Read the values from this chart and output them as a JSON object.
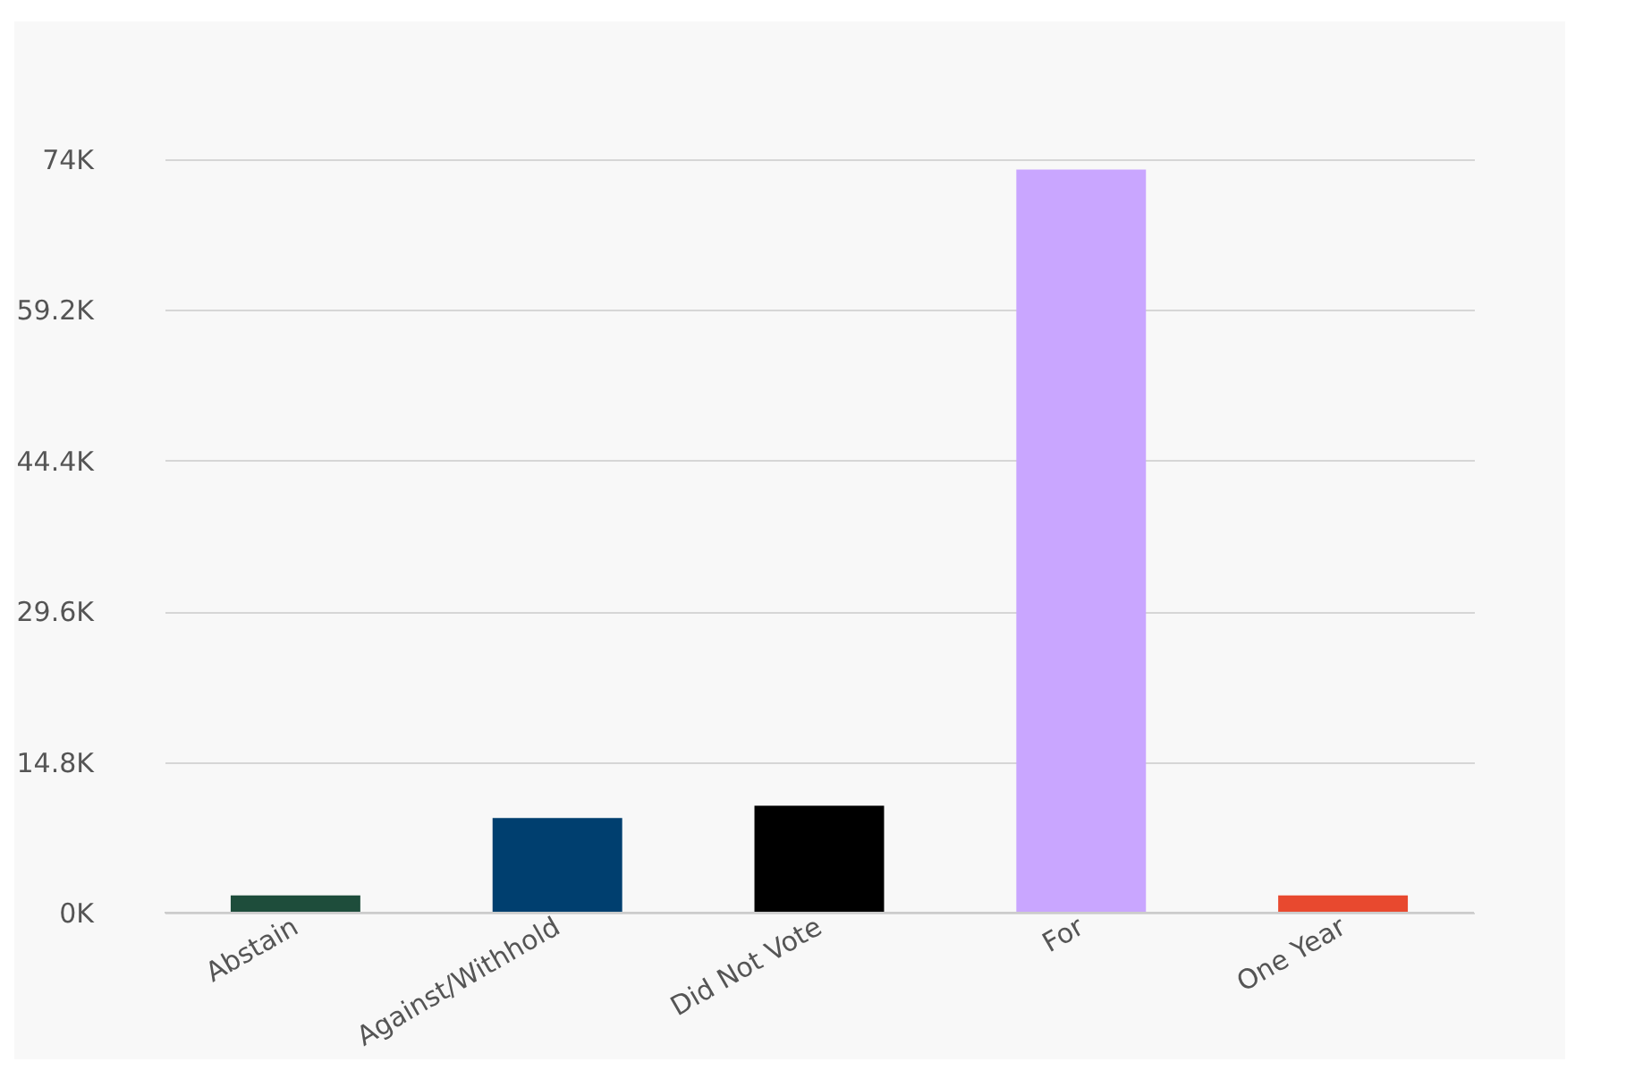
{
  "chart_data": {
    "type": "bar",
    "categories": [
      "Abstain",
      "Against/Withhold",
      "Did Not Vote",
      "For",
      "One Year"
    ],
    "values": [
      1.7,
      9.3,
      10.5,
      73.0,
      1.7
    ],
    "colors": [
      "#1e4d3b",
      "#003f6f",
      "#000000",
      "#c9a6ff",
      "#e8492f"
    ],
    "ylim": [
      0,
      74
    ],
    "yticks": [
      {
        "value": 0,
        "label": "0K"
      },
      {
        "value": 14.8,
        "label": "14.8K"
      },
      {
        "value": 29.6,
        "label": "29.6K"
      },
      {
        "value": 44.4,
        "label": "44.4K"
      },
      {
        "value": 59.2,
        "label": "59.2K"
      },
      {
        "value": 74,
        "label": "74K"
      }
    ],
    "grid": "y",
    "legend": false
  }
}
